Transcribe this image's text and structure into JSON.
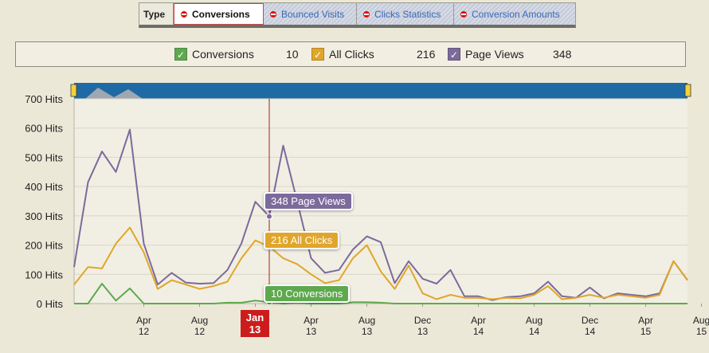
{
  "tabs": {
    "type_label": "Type",
    "items": [
      {
        "label": "Conversions",
        "active": true
      },
      {
        "label": "Bounced Visits",
        "active": false
      },
      {
        "label": "Clicks Statistics",
        "active": false
      },
      {
        "label": "Conversion Amounts",
        "active": false
      }
    ]
  },
  "legend": {
    "items": [
      {
        "label": "Conversions",
        "value": "10",
        "color": "#5ea94e"
      },
      {
        "label": "All Clicks",
        "value": "216",
        "color": "#e0a62b"
      },
      {
        "label": "Page Views",
        "value": "348",
        "color": "#7b6a9c"
      }
    ]
  },
  "tooltips": {
    "page_views": "348 Page Views",
    "all_clicks": "216 All Clicks",
    "conversions": "10 Conversions"
  },
  "cursor": {
    "month": "Jan",
    "year": "13"
  },
  "chart_data": {
    "type": "line",
    "ylim": [
      0,
      700
    ],
    "y_ticks": [
      {
        "value": 0,
        "label": "0 Hits"
      },
      {
        "value": 100,
        "label": "100 Hits"
      },
      {
        "value": 200,
        "label": "200 Hits"
      },
      {
        "value": 300,
        "label": "300 Hits"
      },
      {
        "value": 400,
        "label": "400 Hits"
      },
      {
        "value": 500,
        "label": "500 Hits"
      },
      {
        "value": 600,
        "label": "600 Hits"
      },
      {
        "value": 700,
        "label": "700 Hits"
      }
    ],
    "x_ticks": [
      {
        "index": 5,
        "label": "Apr",
        "sub": "12"
      },
      {
        "index": 9,
        "label": "Aug",
        "sub": "12"
      },
      {
        "index": 13,
        "label": "Dec",
        "sub": "12"
      },
      {
        "index": 17,
        "label": "Apr",
        "sub": "13"
      },
      {
        "index": 21,
        "label": "Aug",
        "sub": "13"
      },
      {
        "index": 25,
        "label": "Dec",
        "sub": "13"
      },
      {
        "index": 29,
        "label": "Apr",
        "sub": "14"
      },
      {
        "index": 33,
        "label": "Aug",
        "sub": "14"
      },
      {
        "index": 37,
        "label": "Dec",
        "sub": "14"
      },
      {
        "index": 41,
        "label": "Apr",
        "sub": "15"
      },
      {
        "index": 45,
        "label": "Aug",
        "sub": "15"
      }
    ],
    "cursor_index": 14,
    "series": [
      {
        "name": "Page Views",
        "color": "#7b6a9c",
        "values": [
          125,
          415,
          520,
          450,
          595,
          205,
          65,
          105,
          72,
          68,
          70,
          115,
          205,
          348,
          298,
          540,
          350,
          155,
          105,
          115,
          185,
          230,
          210,
          70,
          145,
          85,
          68,
          115,
          25,
          25,
          12,
          22,
          25,
          35,
          75,
          25,
          20,
          55,
          18,
          35,
          30,
          25,
          35,
          145,
          80
        ]
      },
      {
        "name": "All Clicks",
        "color": "#e0a62b",
        "values": [
          65,
          125,
          120,
          205,
          260,
          175,
          50,
          80,
          65,
          50,
          60,
          75,
          155,
          216,
          195,
          155,
          135,
          100,
          70,
          80,
          155,
          200,
          110,
          50,
          130,
          35,
          15,
          30,
          20,
          20,
          15,
          20,
          18,
          30,
          60,
          15,
          20,
          30,
          20,
          30,
          25,
          20,
          30,
          145,
          80
        ]
      },
      {
        "name": "Conversions",
        "color": "#5ea94e",
        "values": [
          0,
          0,
          68,
          10,
          52,
          0,
          0,
          0,
          0,
          0,
          0,
          3,
          3,
          10,
          5,
          0,
          3,
          0,
          0,
          0,
          5,
          5,
          3,
          0,
          0,
          0,
          0,
          0,
          0,
          0,
          0,
          0,
          0,
          0,
          0,
          0,
          0,
          0,
          0,
          0,
          0,
          0,
          0,
          0,
          0
        ]
      }
    ]
  }
}
